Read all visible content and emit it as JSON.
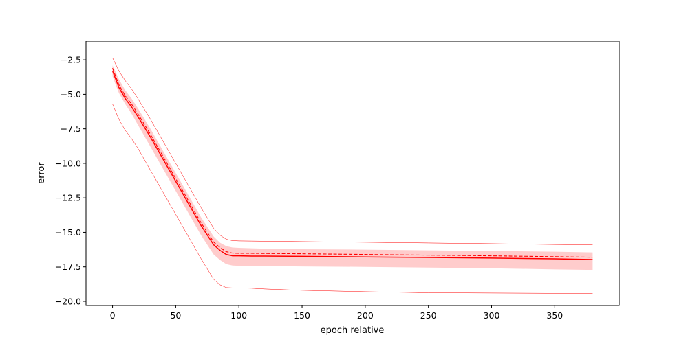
{
  "chart_data": {
    "type": "line",
    "title": "",
    "xlabel": "epoch relative",
    "ylabel": "error",
    "xlim": [
      -21,
      401
    ],
    "ylim": [
      -20.3,
      -1.15
    ],
    "xticks": [
      0,
      50,
      100,
      150,
      200,
      250,
      300,
      350
    ],
    "xtick_labels": [
      "0",
      "50",
      "100",
      "150",
      "200",
      "250",
      "300",
      "350"
    ],
    "yticks": [
      -20.0,
      -17.5,
      -15.0,
      -12.5,
      -10.0,
      -7.5,
      -5.0,
      -2.5
    ],
    "ytick_labels": [
      "−20.0",
      "−17.5",
      "−15.0",
      "−12.5",
      "−10.0",
      "−7.5",
      "−5.0",
      "−2.5"
    ],
    "grid": false,
    "color": "#ff0000",
    "band_color": "#ffcccc",
    "x": [
      0,
      5,
      10,
      15,
      20,
      30,
      40,
      50,
      60,
      70,
      80,
      85,
      90,
      95,
      100,
      110,
      120,
      150,
      200,
      250,
      300,
      350,
      380
    ],
    "series": [
      {
        "style": "solid",
        "values": [
          -3.3,
          -4.5,
          -5.3,
          -5.9,
          -6.6,
          -8.1,
          -9.7,
          -11.3,
          -12.9,
          -14.5,
          -15.9,
          -16.3,
          -16.6,
          -16.7,
          -16.7,
          -16.72,
          -16.72,
          -16.74,
          -16.78,
          -16.82,
          -16.86,
          -16.92,
          -16.97
        ]
      },
      {
        "style": "dashed",
        "values": [
          -3.1,
          -4.3,
          -5.1,
          -5.7,
          -6.4,
          -7.9,
          -9.5,
          -11.1,
          -12.7,
          -14.3,
          -15.7,
          -16.1,
          -16.4,
          -16.5,
          -16.52,
          -16.52,
          -16.53,
          -16.55,
          -16.6,
          -16.65,
          -16.7,
          -16.76,
          -16.8
        ]
      },
      {
        "style": "thin",
        "role": "upper-extreme",
        "values": [
          -2.35,
          -3.3,
          -4.0,
          -4.6,
          -5.3,
          -6.8,
          -8.4,
          -10.0,
          -11.6,
          -13.2,
          -14.7,
          -15.2,
          -15.5,
          -15.6,
          -15.62,
          -15.63,
          -15.64,
          -15.67,
          -15.72,
          -15.77,
          -15.82,
          -15.88,
          -15.9
        ]
      },
      {
        "style": "thin",
        "role": "lower-extreme",
        "values": [
          -5.7,
          -6.8,
          -7.6,
          -8.2,
          -8.9,
          -10.5,
          -12.1,
          -13.7,
          -15.3,
          -16.9,
          -18.4,
          -18.8,
          -19.0,
          -19.02,
          -19.03,
          -19.05,
          -19.1,
          -19.2,
          -19.3,
          -19.38,
          -19.4,
          -19.42,
          -19.43
        ]
      }
    ],
    "band": {
      "upper": [
        -2.9,
        -3.9,
        -4.7,
        -5.3,
        -6.0,
        -7.5,
        -9.1,
        -10.7,
        -12.3,
        -13.9,
        -15.3,
        -15.75,
        -16.0,
        -16.1,
        -16.12,
        -16.15,
        -16.18,
        -16.22,
        -16.25,
        -16.3,
        -16.35,
        -16.4,
        -16.45
      ],
      "lower": [
        -3.7,
        -4.9,
        -5.7,
        -6.4,
        -7.2,
        -8.8,
        -10.4,
        -12.0,
        -13.6,
        -15.2,
        -16.6,
        -17.0,
        -17.3,
        -17.4,
        -17.42,
        -17.43,
        -17.44,
        -17.47,
        -17.5,
        -17.55,
        -17.6,
        -17.68,
        -17.72
      ]
    }
  }
}
